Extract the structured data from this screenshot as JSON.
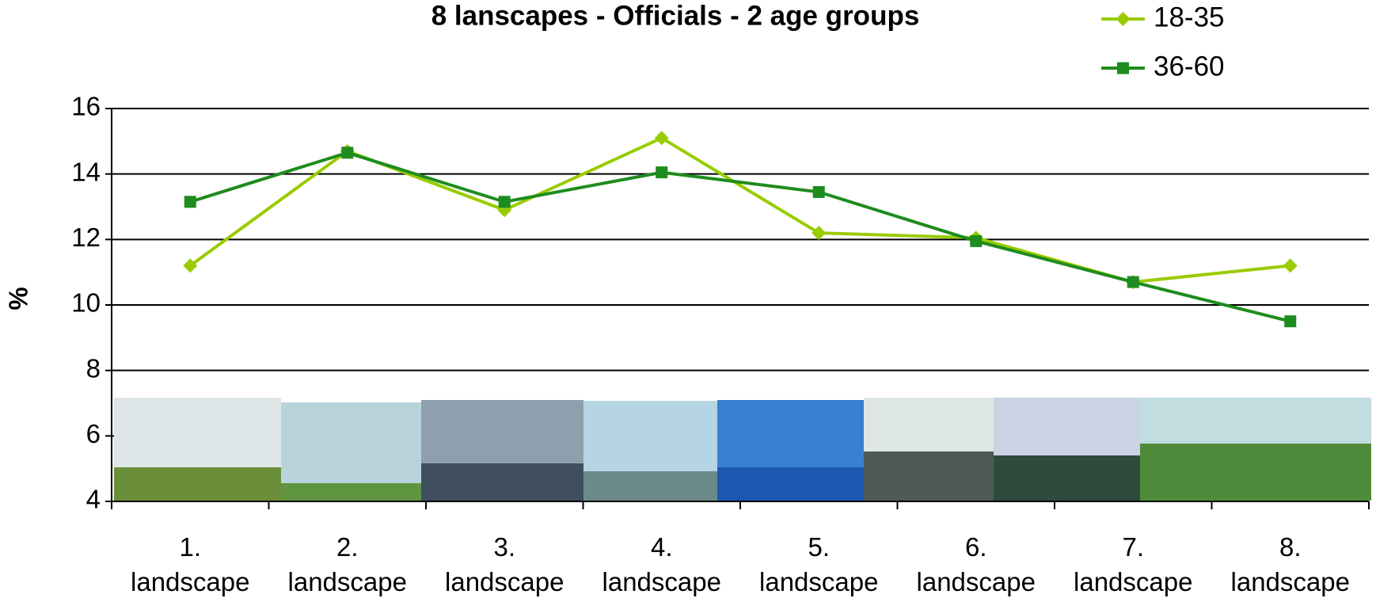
{
  "chart_data": {
    "type": "line",
    "title": "8 lanscapes - Officials - 2 age groups",
    "y_label": "%",
    "categories": [
      "1. landscape",
      "2. landscape",
      "3. landscape",
      "4. landscape",
      "5. landscape",
      "6. landscape",
      "7. landscape",
      "8. landscape"
    ],
    "series": [
      {
        "name": "18-35",
        "color": "#99cc00",
        "marker": "diamond",
        "values": [
          11.2,
          14.7,
          12.9,
          15.1,
          12.2,
          12.05,
          10.7,
          11.2
        ]
      },
      {
        "name": "36-60",
        "color": "#1e8c1e",
        "marker": "square",
        "values": [
          13.15,
          14.65,
          13.15,
          14.05,
          13.45,
          11.95,
          10.7,
          9.5
        ]
      }
    ],
    "ylim": [
      4,
      16
    ],
    "yticks": [
      4,
      6,
      8,
      10,
      12,
      14,
      16
    ],
    "grid": true,
    "legend": "top-right"
  }
}
